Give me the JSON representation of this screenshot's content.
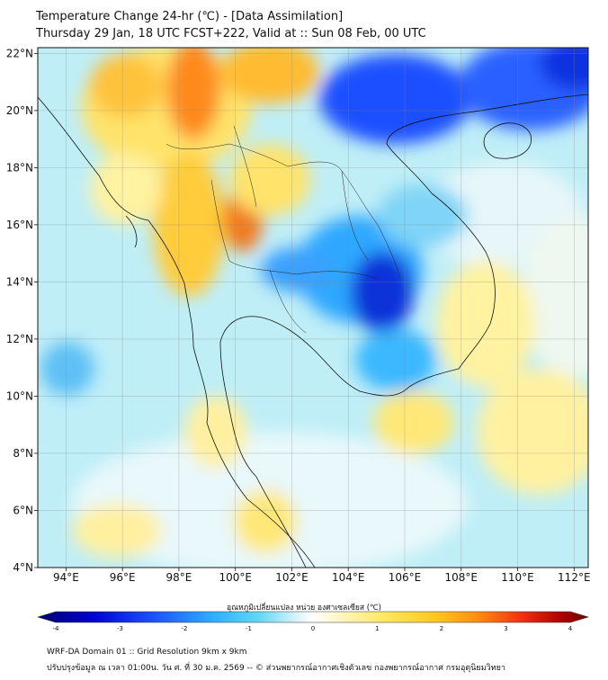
{
  "title_line1": "Temperature Change 24-hr (℃) - [Data Assimilation]",
  "title_line2": "Thursday 29 Jan, 18 UTC FCST+222, Valid at :: Sun 08 Feb, 00 UTC",
  "map": {
    "lon_range": [
      93,
      112.5
    ],
    "lat_range": [
      4,
      22.2
    ],
    "lon_ticks": [
      "94°E",
      "96°E",
      "98°E",
      "100°E",
      "102°E",
      "104°E",
      "106°E",
      "108°E",
      "110°E",
      "112°E"
    ],
    "lon_values": [
      94,
      96,
      98,
      100,
      102,
      104,
      106,
      108,
      110,
      112
    ],
    "lat_ticks": [
      "22°N",
      "20°N",
      "18°N",
      "16°N",
      "14°N",
      "12°N",
      "10°N",
      "8°N",
      "6°N",
      "4°N"
    ],
    "lat_values": [
      22,
      20,
      18,
      16,
      14,
      12,
      10,
      8,
      6,
      4
    ],
    "gridlines": true
  },
  "colorbar": {
    "label": "อุณหภูมิเปลี่ยนแปลง หน่วย องศาเซลเซียส (℃)",
    "ticks": [
      "-4",
      "-3",
      "-2",
      "-1",
      "0",
      "1",
      "2",
      "3",
      "4"
    ],
    "min": -4,
    "max": 4,
    "colors": [
      "#000080",
      "#0000ff",
      "#1e5aff",
      "#2fa8ff",
      "#3ccbf5",
      "#7ee0f5",
      "#d8f3f8",
      "#ffffff",
      "#fff8c0",
      "#ffec70",
      "#ffd428",
      "#ffa21a",
      "#ff6a0a",
      "#e81a0a",
      "#b00000",
      "#700000"
    ]
  },
  "footer_line1": "WRF-DA Domain 01 :: Grid Resolution 9km x 9km",
  "footer_line2": "ปรับปรุงข้อมูล ณ เวลา 01:00น. วัน ศ. ที่ 30 ม.ค. 2569 -- © ส่วนพยากรณ์อากาศเชิงตัวเลข กองพยากรณ์อากาศ กรมอุตุนิยมวิทยา"
}
